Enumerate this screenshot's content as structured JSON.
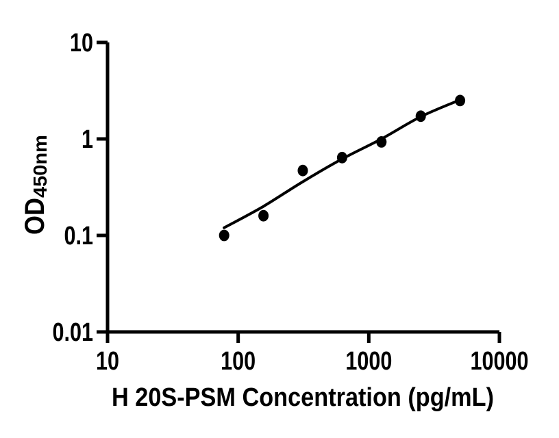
{
  "figure": {
    "background": "#ffffff",
    "ink_color": "#000000"
  },
  "chart_data": {
    "type": "scatter",
    "title": "",
    "xlabel": "H 20S-PSM Concentration (pg/mL)",
    "ylabel": "OD450nm",
    "ylabel_main": "OD",
    "ylabel_sub": "450nm",
    "xscale": "log",
    "yscale": "log",
    "xlim": [
      10,
      10000
    ],
    "ylim": [
      0.01,
      10
    ],
    "x_ticks": [
      10,
      100,
      1000,
      10000
    ],
    "x_tick_labels": [
      "10",
      "100",
      "1000",
      "10000"
    ],
    "y_ticks": [
      0.01,
      0.1,
      1,
      10
    ],
    "y_tick_labels": [
      "0.01",
      "0.1",
      "1",
      "10"
    ],
    "grid": false,
    "legend": "none",
    "marker_color": "#000000",
    "line_color": "#000000",
    "series": [
      {
        "name": "standard-points",
        "type": "scatter",
        "marker": "filled-circle",
        "x": [
          78.125,
          156.25,
          312.5,
          625,
          1250,
          2500,
          5000
        ],
        "y": [
          0.1,
          0.16,
          0.47,
          0.64,
          0.93,
          1.72,
          2.5
        ]
      },
      {
        "name": "fit-curve",
        "type": "line",
        "x": [
          78,
          156,
          312,
          625,
          1250,
          2500,
          5000
        ],
        "y": [
          0.12,
          0.2,
          0.36,
          0.62,
          1.0,
          1.7,
          2.54
        ]
      }
    ]
  }
}
